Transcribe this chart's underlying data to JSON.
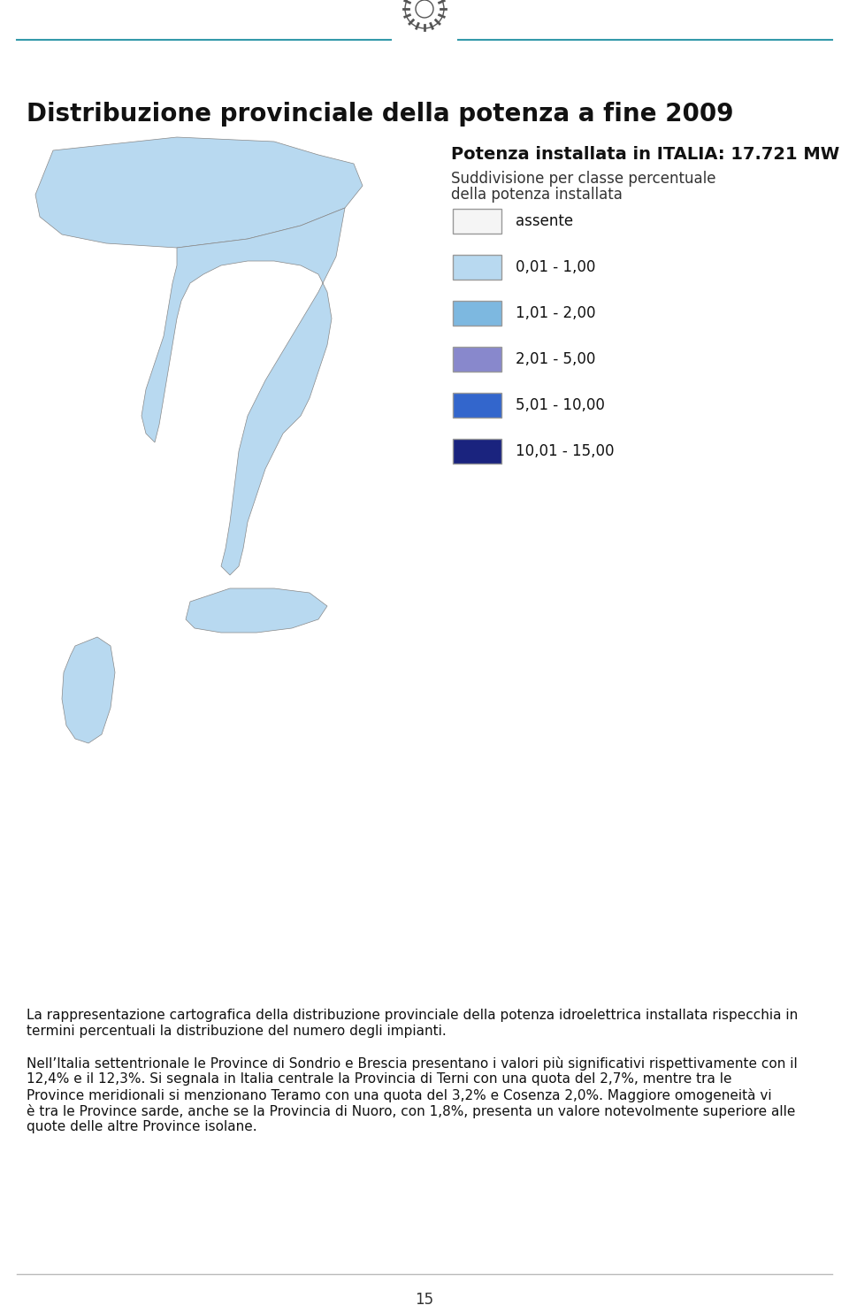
{
  "title": "Distribuzione provinciale della potenza a fine 2009",
  "header_line_color": "#3399aa",
  "page_bg": "#ffffff",
  "potenza_title": "Potenza installata in ITALIA: 17.721 MW",
  "potenza_subtitle1": "Suddivisione per classe percentuale",
  "potenza_subtitle2": "della potenza installata",
  "legend_items": [
    {
      "label": "assente",
      "color": "#f5f5f5",
      "border": "#999999"
    },
    {
      "label": "0,01 - 1,00",
      "color": "#b8d9f0",
      "border": "#999999"
    },
    {
      "label": "1,01 - 2,00",
      "color": "#7db8e0",
      "border": "#999999"
    },
    {
      "label": "2,01 - 5,00",
      "color": "#8888cc",
      "border": "#999999"
    },
    {
      "label": "5,01 - 10,00",
      "color": "#3366cc",
      "border": "#999999"
    },
    {
      "label": "10,01 - 15,00",
      "color": "#1a237e",
      "border": "#999999"
    }
  ],
  "body_text": [
    "La rappresentazione cartografica della distribuzione provinciale della potenza idroelettrica installata rispecchia in",
    "termini percentuali la distribuzione del numero degli impianti.",
    "",
    "Nell’Italia settentrionale le Province di Sondrio e Brescia presentano i valori più significativi rispettivamente con il",
    "12,4% e il 12,3%. Si segnala in Italia centrale la Provincia di Terni con una quota del 2,7%, mentre tra le",
    "Province meridionali si menzionano Teramo con una quota del 3,2% e Cosenza 2,0%. Maggiore omogeneità vi",
    "è tra le Province sarde, anche se la Provincia di Nuoro, con 1,8%, presenta un valore notevolmente superiore alle",
    "quote delle altre Province isolane."
  ],
  "page_number": "15",
  "title_fontsize": 20,
  "body_fontsize": 11,
  "legend_fontsize": 12,
  "potenza_title_fontsize": 14,
  "potenza_subtitle_fontsize": 12
}
